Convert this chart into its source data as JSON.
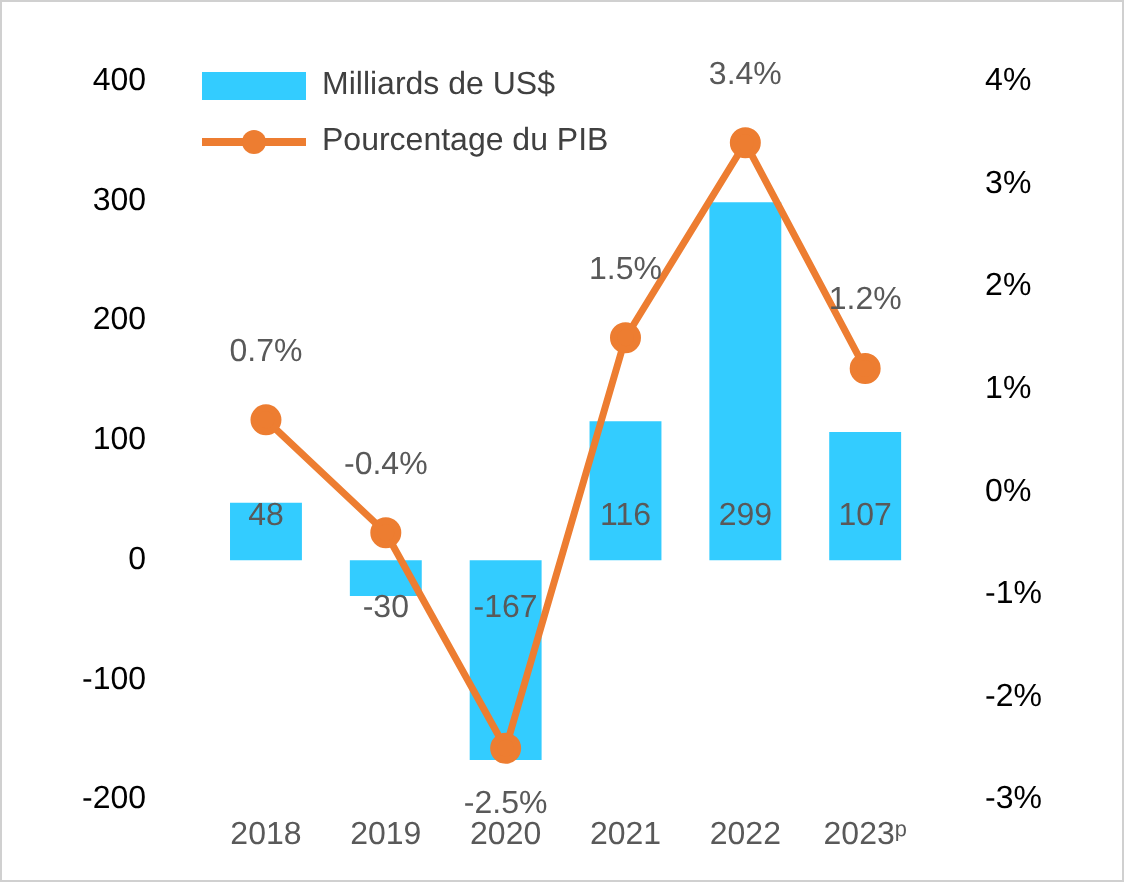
{
  "chart_data": {
    "type": "bar",
    "categories": [
      "2018",
      "2019",
      "2020",
      "2021",
      "2022",
      "2023ᵖ"
    ],
    "series": [
      {
        "name": "Milliards de US$",
        "color": "#33ccff",
        "values": [
          48,
          -30,
          -167,
          116,
          299,
          107
        ],
        "value_labels": [
          "48",
          "-30",
          "-167",
          "116",
          "299",
          "107"
        ]
      },
      {
        "name": "Pourcentage du PIB",
        "type": "line",
        "axis": "y2",
        "color": "#ed7d31",
        "values": [
          0.7,
          -0.4,
          -2.5,
          1.5,
          3.4,
          1.2
        ],
        "value_labels": [
          "0.7%",
          "-0.4%",
          "-2.5%",
          "1.5%",
          "3.4%",
          "1.2%"
        ]
      }
    ],
    "ylim": [
      -200,
      400
    ],
    "yticks": [
      -200,
      -100,
      0,
      100,
      200,
      300,
      400
    ],
    "y2lim": [
      -3,
      4
    ],
    "y2ticks": [
      {
        "value": -3,
        "label": "-3%"
      },
      {
        "value": -2,
        "label": "-2%"
      },
      {
        "value": -1,
        "label": "-1%"
      },
      {
        "value": 0,
        "label": "0%"
      },
      {
        "value": 1,
        "label": "1%"
      },
      {
        "value": 2,
        "label": "2%"
      },
      {
        "value": 3,
        "label": "3%"
      },
      {
        "value": 4,
        "label": "4%"
      }
    ],
    "grid": false,
    "legend": "top left",
    "marker": "circle",
    "line_style": "solid"
  }
}
